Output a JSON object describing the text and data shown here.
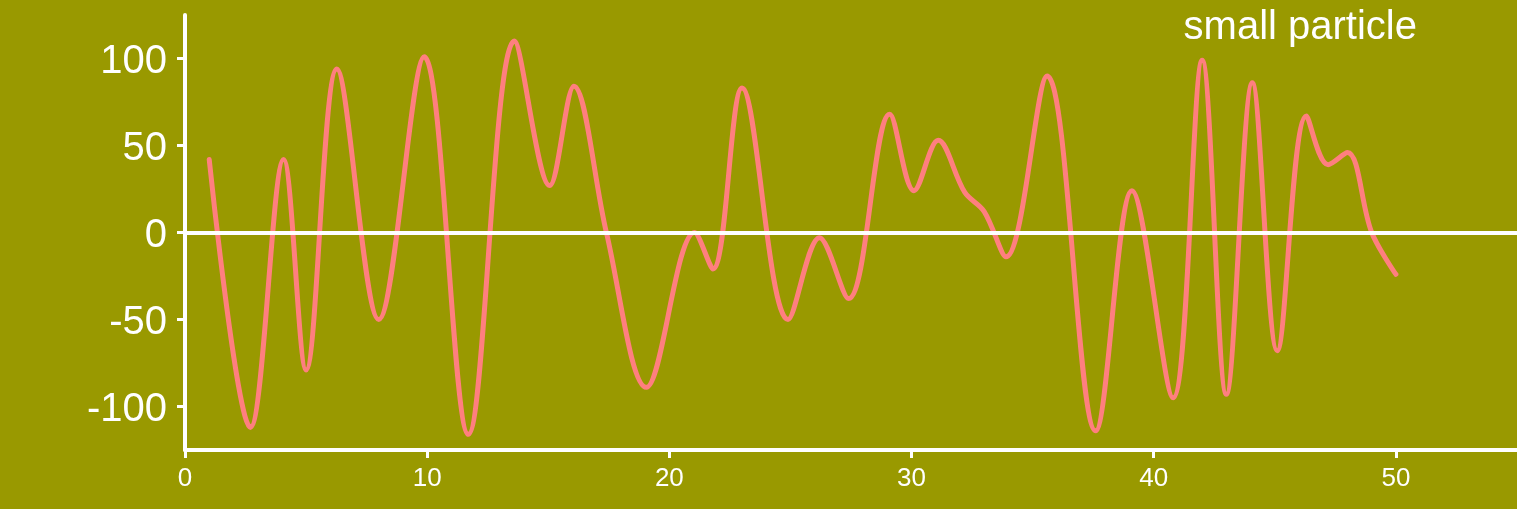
{
  "chart_data": {
    "type": "line",
    "title": "small particle",
    "x": [
      1,
      2.7,
      4.07,
      5,
      6.27,
      8,
      9.88,
      11.7,
      13.6,
      15.06,
      16.06,
      17.4,
      19.05,
      21.04,
      21.8,
      23,
      24.9,
      26.2,
      27.4,
      29.1,
      30.1,
      31.1,
      32.2,
      33,
      33.9,
      35.6,
      37.6,
      39.1,
      40.8,
      42,
      43,
      44.07,
      45.1,
      46.3,
      47.2,
      48,
      49,
      50
    ],
    "series": [
      {
        "color": "#ff7f7f",
        "values": [
          42,
          -112,
          42,
          -79,
          94,
          -50,
          101,
          -116,
          110,
          27,
          84,
          0,
          -89,
          0,
          -21,
          83,
          -50,
          -3,
          -38,
          68,
          24,
          53,
          23,
          12,
          -14,
          90,
          -114,
          24,
          -95,
          99,
          -93,
          86,
          -68,
          67,
          39,
          46,
          0,
          -24
        ]
      }
    ],
    "xlim": [
      0,
      55
    ],
    "xticks": [
      0,
      10,
      20,
      30,
      40,
      50
    ],
    "ylim": [
      -125,
      125
    ],
    "yticks": [
      -100,
      -50,
      0,
      50,
      100
    ],
    "ref_lines": [
      {
        "axis": "y",
        "value": 0,
        "color": "#ffffff"
      }
    ],
    "grid": false,
    "marker": "none",
    "line_style": "solid"
  }
}
